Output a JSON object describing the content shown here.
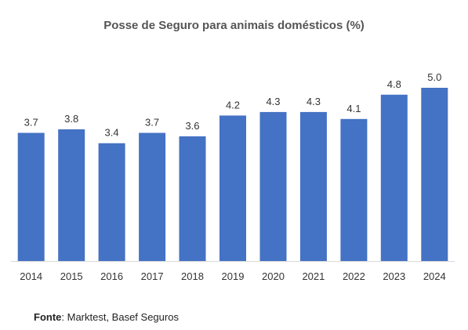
{
  "chart_data": {
    "type": "bar",
    "title": "Posse de Seguro para animais domésticos (%)",
    "xlabel": "",
    "ylabel": "",
    "categories": [
      "2014",
      "2015",
      "2016",
      "2017",
      "2018",
      "2019",
      "2020",
      "2021",
      "2022",
      "2023",
      "2024"
    ],
    "values": [
      3.7,
      3.8,
      3.4,
      3.7,
      3.6,
      4.2,
      4.3,
      4.3,
      4.1,
      4.8,
      5.0
    ],
    "value_labels": [
      "3.7",
      "3.8",
      "3.4",
      "3.7",
      "3.6",
      "4.2",
      "4.3",
      "4.3",
      "4.1",
      "4.8",
      "5.0"
    ],
    "ylim": [
      0,
      5.0
    ],
    "grid": false,
    "legend": "none",
    "bar_color": "#4472c4",
    "axis_color": "#d9d9d9"
  },
  "source": {
    "label": "Fonte",
    "text": ": Marktest, Basef Seguros"
  }
}
